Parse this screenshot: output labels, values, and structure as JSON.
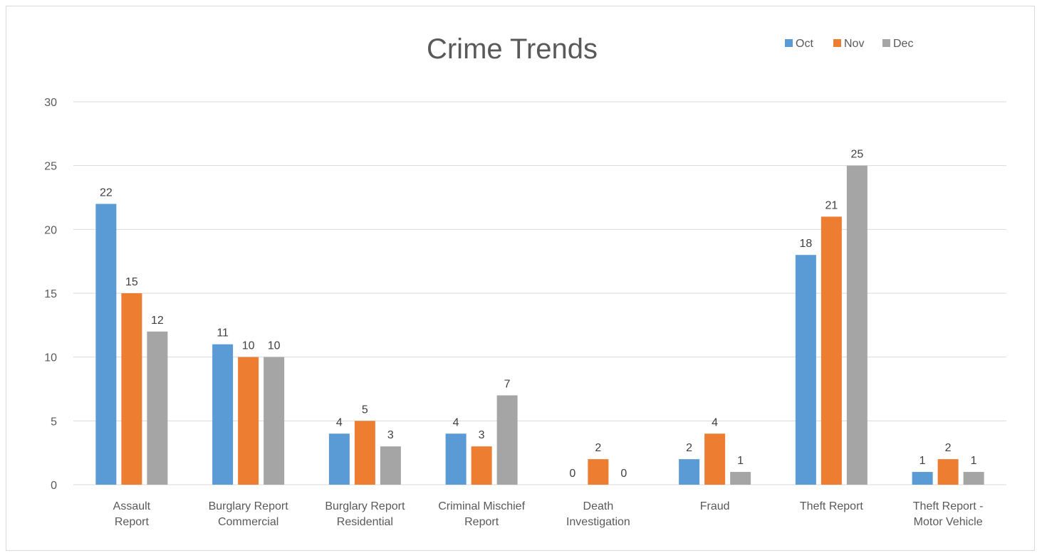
{
  "chart_data": {
    "type": "bar",
    "title": "Crime Trends",
    "xlabel": "",
    "ylabel": "",
    "ylim": [
      0,
      30
    ],
    "yticks": [
      0,
      5,
      10,
      15,
      20,
      25,
      30
    ],
    "grid": true,
    "legend_position": "top-right",
    "categories": [
      [
        "Assault",
        "Report"
      ],
      [
        "Burglary Report",
        "Commercial"
      ],
      [
        "Burglary Report",
        "Residential"
      ],
      [
        "Criminal Mischief",
        "Report"
      ],
      [
        "Death",
        "Investigation"
      ],
      [
        "Fraud"
      ],
      [
        "Theft Report"
      ],
      [
        "Theft Report -",
        "Motor Vehicle"
      ]
    ],
    "series": [
      {
        "name": "Oct",
        "color": "#5b9bd5",
        "values": [
          22,
          11,
          4,
          4,
          0,
          2,
          18,
          1
        ]
      },
      {
        "name": "Nov",
        "color": "#ed7d31",
        "values": [
          15,
          10,
          5,
          3,
          2,
          4,
          21,
          2
        ]
      },
      {
        "name": "Dec",
        "color": "#a5a5a5",
        "values": [
          12,
          10,
          3,
          7,
          0,
          1,
          25,
          1
        ]
      }
    ],
    "colors": {
      "grid": "#d9d9d9",
      "axis": "#d9d9d9"
    }
  }
}
